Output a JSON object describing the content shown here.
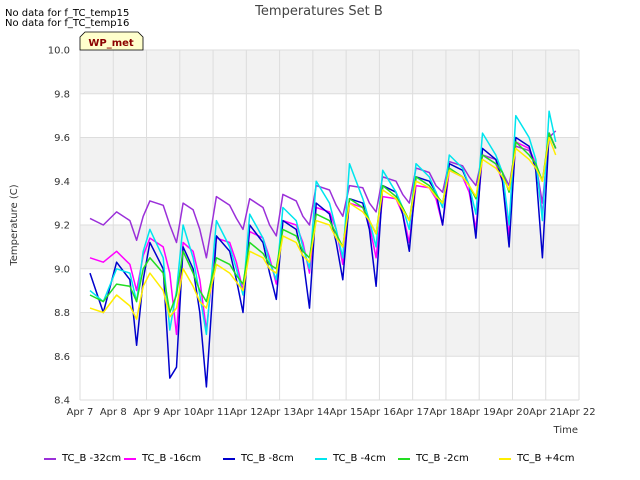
{
  "messages": [
    "No data for f_TC_temp15",
    "No data for f_TC_temp16"
  ],
  "chart_data": {
    "type": "line",
    "title": "Temperatures Set B",
    "xlabel": "Time",
    "ylabel": "Temperature (C)",
    "badge": "WP_met",
    "x_ticks": [
      "Apr 7",
      "Apr 8",
      "Apr 9",
      "Apr 10",
      "Apr 11",
      "Apr 12",
      "Apr 13",
      "Apr 14",
      "Apr 15",
      "Apr 16",
      "Apr 17",
      "Apr 18",
      "Apr 19",
      "Apr 20",
      "Apr 21",
      "Apr 22"
    ],
    "y_ticks": [
      "8.4",
      "8.6",
      "8.8",
      "9.0",
      "9.2",
      "9.4",
      "9.6",
      "9.8",
      "10.0"
    ],
    "xlim": [
      0,
      15
    ],
    "ylim": [
      8.4,
      10.0
    ],
    "grid": true,
    "legend_position": "bottom",
    "x": [
      0.3,
      0.7,
      1.1,
      1.5,
      1.7,
      1.9,
      2.1,
      2.5,
      2.7,
      2.9,
      3.1,
      3.4,
      3.6,
      3.8,
      4.1,
      4.5,
      4.7,
      4.9,
      5.1,
      5.5,
      5.7,
      5.9,
      6.1,
      6.5,
      6.7,
      6.9,
      7.1,
      7.5,
      7.7,
      7.9,
      8.1,
      8.5,
      8.7,
      8.9,
      9.1,
      9.5,
      9.7,
      9.9,
      10.1,
      10.5,
      10.7,
      10.9,
      11.1,
      11.5,
      11.7,
      11.9,
      12.1,
      12.5,
      12.7,
      12.9,
      13.1,
      13.5,
      13.7,
      13.9,
      14.1,
      14.3
    ],
    "series": [
      {
        "name": "TC_B -32cm",
        "color": "#9b30d9",
        "values": [
          9.23,
          9.2,
          9.26,
          9.22,
          9.13,
          9.24,
          9.31,
          9.29,
          9.2,
          9.12,
          9.3,
          9.27,
          9.18,
          9.05,
          9.33,
          9.29,
          9.23,
          9.18,
          9.32,
          9.28,
          9.2,
          9.15,
          9.34,
          9.31,
          9.24,
          9.2,
          9.38,
          9.36,
          9.29,
          9.24,
          9.38,
          9.37,
          9.3,
          9.26,
          9.42,
          9.4,
          9.34,
          9.3,
          9.46,
          9.44,
          9.38,
          9.35,
          9.49,
          9.47,
          9.42,
          9.38,
          9.52,
          9.5,
          9.44,
          9.38,
          9.56,
          9.54,
          9.48,
          9.3,
          9.6,
          9.63
        ]
      },
      {
        "name": "TC_B -16cm",
        "color": "#ff00ff",
        "values": [
          9.05,
          9.03,
          9.08,
          9.02,
          8.9,
          9.06,
          9.14,
          9.1,
          8.98,
          8.7,
          9.12,
          9.08,
          8.95,
          8.72,
          9.14,
          9.12,
          9.03,
          8.9,
          9.17,
          9.14,
          9.05,
          8.93,
          9.22,
          9.2,
          9.12,
          8.98,
          9.28,
          9.26,
          9.18,
          9.02,
          9.3,
          9.28,
          9.2,
          9.05,
          9.33,
          9.32,
          9.25,
          9.12,
          9.38,
          9.37,
          9.32,
          9.2,
          9.45,
          9.42,
          9.35,
          9.18,
          9.52,
          9.48,
          9.4,
          9.15,
          9.58,
          9.55,
          9.48,
          9.25,
          9.62,
          9.55
        ]
      },
      {
        "name": "TC_B -8cm",
        "color": "#0000cc",
        "values": [
          8.98,
          8.8,
          9.03,
          8.95,
          8.65,
          8.95,
          9.12,
          9.0,
          8.5,
          8.55,
          9.1,
          9.0,
          8.8,
          8.46,
          9.15,
          9.08,
          8.95,
          8.8,
          9.2,
          9.12,
          8.98,
          8.86,
          9.22,
          9.18,
          9.05,
          8.82,
          9.3,
          9.25,
          9.12,
          8.95,
          9.32,
          9.3,
          9.18,
          8.92,
          9.38,
          9.35,
          9.25,
          9.08,
          9.42,
          9.4,
          9.35,
          9.2,
          9.48,
          9.45,
          9.38,
          9.14,
          9.55,
          9.5,
          9.4,
          9.1,
          9.6,
          9.56,
          9.45,
          9.05,
          9.62,
          9.55
        ]
      },
      {
        "name": "TC_B -4cm",
        "color": "#00e5ee",
        "values": [
          8.9,
          8.85,
          9.0,
          8.98,
          8.85,
          9.08,
          9.18,
          9.05,
          8.72,
          8.9,
          9.2,
          9.05,
          8.88,
          8.7,
          9.22,
          9.1,
          9.0,
          8.88,
          9.25,
          9.14,
          9.03,
          8.95,
          9.28,
          9.22,
          9.1,
          9.0,
          9.4,
          9.3,
          9.18,
          9.05,
          9.48,
          9.32,
          9.22,
          9.1,
          9.45,
          9.35,
          9.28,
          9.18,
          9.48,
          9.42,
          9.35,
          9.28,
          9.52,
          9.46,
          9.38,
          9.25,
          9.62,
          9.52,
          9.44,
          9.2,
          9.7,
          9.6,
          9.5,
          9.22,
          9.72,
          9.58
        ]
      },
      {
        "name": "TC_B -2cm",
        "color": "#22dd22",
        "values": [
          8.88,
          8.85,
          8.93,
          8.92,
          8.85,
          9.0,
          9.05,
          8.98,
          8.8,
          8.88,
          9.08,
          8.98,
          8.9,
          8.85,
          9.05,
          9.02,
          8.97,
          8.93,
          9.12,
          9.07,
          9.02,
          9.0,
          9.18,
          9.15,
          9.08,
          9.05,
          9.25,
          9.22,
          9.16,
          9.1,
          9.32,
          9.28,
          9.22,
          9.16,
          9.38,
          9.33,
          9.28,
          9.22,
          9.42,
          9.38,
          9.34,
          9.3,
          9.46,
          9.42,
          9.38,
          9.32,
          9.52,
          9.48,
          9.44,
          9.35,
          9.58,
          9.52,
          9.48,
          9.4,
          9.62,
          9.55
        ]
      },
      {
        "name": "TC_B +4cm",
        "color": "#ffee00",
        "values": [
          8.82,
          8.8,
          8.88,
          8.83,
          8.77,
          8.92,
          8.98,
          8.9,
          8.78,
          8.82,
          9.0,
          8.92,
          8.85,
          8.82,
          9.02,
          8.98,
          8.94,
          8.9,
          9.08,
          9.05,
          9.0,
          8.98,
          9.15,
          9.12,
          9.06,
          9.03,
          9.22,
          9.2,
          9.14,
          9.1,
          9.3,
          9.26,
          9.22,
          9.16,
          9.36,
          9.32,
          9.27,
          9.22,
          9.4,
          9.37,
          9.33,
          9.3,
          9.45,
          9.42,
          9.38,
          9.33,
          9.5,
          9.46,
          9.42,
          9.36,
          9.55,
          9.5,
          9.46,
          9.4,
          9.6,
          9.52
        ]
      }
    ]
  },
  "colors": {
    "plot_band": "#f2f2f2",
    "plot_bg": "#ffffff",
    "badge_bg": "#ffffcc",
    "badge_text": "#8b0000"
  }
}
